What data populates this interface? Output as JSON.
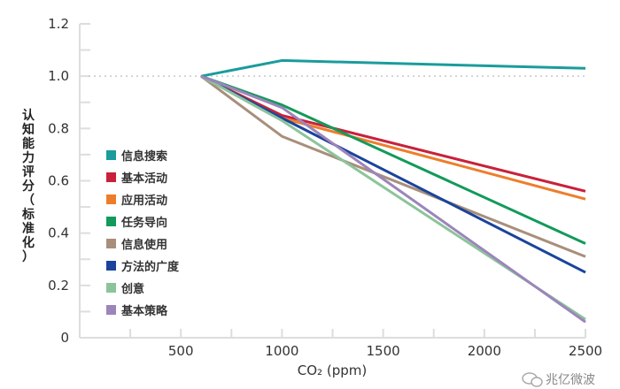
{
  "chart_data": {
    "type": "line",
    "title": "",
    "xlabel": "CO₂ (ppm)",
    "ylabel": "认知能力评分（标准化）",
    "xlim": [
      0,
      2500
    ],
    "ylim": [
      0,
      1.2
    ],
    "x_ticks": [
      "500",
      "1000",
      "1500",
      "2000",
      "2500"
    ],
    "y_ticks": [
      "0",
      "0.2",
      "0.4",
      "0.6",
      "0.8",
      "1.0",
      "1.2"
    ],
    "reference_line": {
      "y": 1.0,
      "style": "dotted"
    },
    "grid": false,
    "legend_position": "left",
    "x": [
      600,
      1000,
      2500
    ],
    "series": [
      {
        "name": "信息搜索",
        "color": "#1a9c9c",
        "values": [
          1.0,
          1.06,
          1.03
        ]
      },
      {
        "name": "基本活动",
        "color": "#c8213a",
        "values": [
          1.0,
          0.85,
          0.56
        ]
      },
      {
        "name": "应用活动",
        "color": "#ee7d2b",
        "values": [
          1.0,
          0.84,
          0.53
        ]
      },
      {
        "name": "任务导向",
        "color": "#139a5a",
        "values": [
          1.0,
          0.89,
          0.36
        ]
      },
      {
        "name": "信息使用",
        "color": "#a88f7b",
        "values": [
          1.0,
          0.77,
          0.31
        ]
      },
      {
        "name": "方法的广度",
        "color": "#1a449c",
        "values": [
          1.0,
          0.84,
          0.25
        ]
      },
      {
        "name": "创意",
        "color": "#8cc49a",
        "values": [
          1.0,
          0.83,
          0.07
        ]
      },
      {
        "name": "基本策略",
        "color": "#9c85bb",
        "values": [
          1.0,
          0.88,
          0.06
        ]
      }
    ]
  },
  "watermark": {
    "text": "兆亿微波",
    "icon": "wechat-icon"
  }
}
